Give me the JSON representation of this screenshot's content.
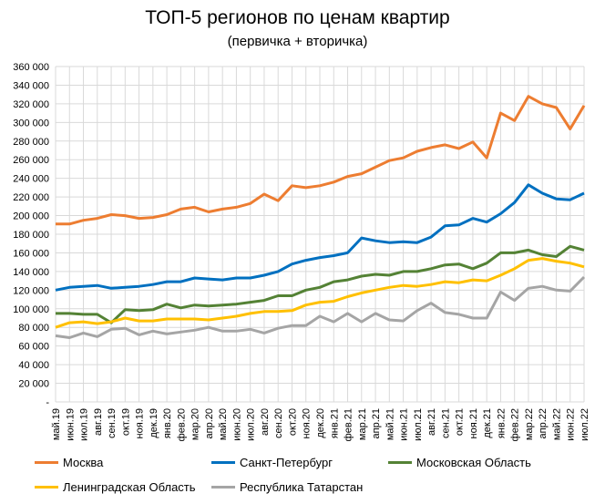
{
  "chart_data": {
    "type": "line",
    "title": "ТОП-5 регионов по ценам квартир",
    "subtitle": "(первичка + вторичка)",
    "xlabel": "",
    "ylabel": "",
    "ylim": [
      0,
      360000
    ],
    "y_ticks": [
      "-",
      "20 000",
      "40 000",
      "60 000",
      "80 000",
      "100 000",
      "120 000",
      "140 000",
      "160 000",
      "180 000",
      "200 000",
      "220 000",
      "240 000",
      "260 000",
      "280 000",
      "300 000",
      "320 000",
      "340 000",
      "360 000"
    ],
    "grid": true,
    "legend_position": "bottom",
    "categories": [
      "май.19",
      "июн.19",
      "июл.19",
      "авг.19",
      "сен.19",
      "окт.19",
      "ноя.19",
      "дек.19",
      "янв.20",
      "фев.20",
      "мар.20",
      "апр.20",
      "май.20",
      "июн.20",
      "июл.20",
      "авг.20",
      "сен.20",
      "окт.20",
      "ноя.20",
      "дек.20",
      "янв.21",
      "фев.21",
      "мар.21",
      "апр.21",
      "май.21",
      "июн.21",
      "июл.21",
      "авг.21",
      "сен.21",
      "окт.21",
      "ноя.21",
      "дек.21",
      "янв.22",
      "фев.22",
      "мар.22",
      "апр.22",
      "май.22",
      "июн.22",
      "июл.22"
    ],
    "series": [
      {
        "name": "Москва",
        "color": "#ED7D31",
        "values": [
          191000,
          191000,
          195000,
          197000,
          201000,
          200000,
          197000,
          198000,
          201000,
          207000,
          209000,
          204000,
          207000,
          209000,
          213000,
          223000,
          216000,
          232000,
          230000,
          232000,
          236000,
          242000,
          245000,
          252000,
          259000,
          262000,
          269000,
          273000,
          276000,
          272000,
          279000,
          262000,
          310000,
          302000,
          328000,
          320000,
          316000,
          293000,
          318000
        ]
      },
      {
        "name": "Санкт-Петербург",
        "color": "#0070C0",
        "values": [
          120000,
          123000,
          124000,
          125000,
          122000,
          123000,
          124000,
          126000,
          129000,
          129000,
          133000,
          132000,
          131000,
          133000,
          133000,
          136000,
          140000,
          148000,
          152000,
          155000,
          157000,
          160000,
          176000,
          173000,
          171000,
          172000,
          171000,
          177000,
          189000,
          190000,
          197000,
          193000,
          202000,
          214000,
          233000,
          224000,
          218000,
          217000,
          224000
        ]
      },
      {
        "name": "Московская Область",
        "color": "#548235",
        "values": [
          95000,
          95000,
          94000,
          94000,
          85000,
          99000,
          98000,
          99000,
          105000,
          101000,
          104000,
          103000,
          104000,
          105000,
          107000,
          109000,
          114000,
          114000,
          120000,
          123000,
          129000,
          131000,
          135000,
          137000,
          136000,
          140000,
          140000,
          143000,
          147000,
          148000,
          143000,
          149000,
          160000,
          160000,
          163000,
          158000,
          156000,
          167000,
          163000
        ]
      },
      {
        "name": "Ленинградская Область",
        "color": "#FFC000",
        "values": [
          80000,
          85000,
          86000,
          84000,
          86000,
          90000,
          87000,
          87000,
          89000,
          89000,
          89000,
          88000,
          90000,
          92000,
          95000,
          97000,
          97000,
          98000,
          104000,
          107000,
          108000,
          113000,
          117000,
          120000,
          123000,
          125000,
          124000,
          126000,
          129000,
          128000,
          131000,
          130000,
          136000,
          143000,
          152000,
          154000,
          151000,
          149000,
          145000
        ]
      },
      {
        "name": "Республика Татарстан",
        "color": "#A5A5A5",
        "values": [
          71000,
          69000,
          74000,
          70000,
          78000,
          79000,
          72000,
          76000,
          73000,
          75000,
          77000,
          80000,
          76000,
          76000,
          78000,
          74000,
          79000,
          82000,
          82000,
          92000,
          86000,
          95000,
          86000,
          95000,
          88000,
          87000,
          98000,
          106000,
          96000,
          94000,
          90000,
          90000,
          118000,
          109000,
          122000,
          124000,
          120000,
          119000,
          134000
        ]
      }
    ]
  }
}
